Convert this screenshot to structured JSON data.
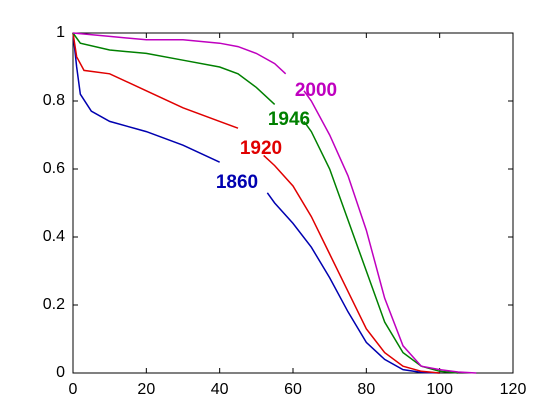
{
  "chart_data": {
    "type": "line",
    "xlim": [
      0,
      120
    ],
    "xticks": [
      0,
      20,
      40,
      60,
      80,
      100,
      120
    ],
    "ylim": [
      0,
      1
    ],
    "yticks": [
      0,
      0.2,
      0.4,
      0.6,
      0.8,
      1
    ],
    "grid": false,
    "series": [
      {
        "name": "1860",
        "color": "#0000b0",
        "x": [
          0,
          1,
          2,
          5,
          10,
          20,
          30,
          40,
          47,
          53,
          55,
          60,
          65,
          70,
          75,
          80,
          85,
          90,
          95,
          100
        ],
        "values": [
          1,
          0.9,
          0.82,
          0.77,
          0.74,
          0.71,
          0.67,
          0.62,
          null,
          0.53,
          0.5,
          0.44,
          0.37,
          0.28,
          0.18,
          0.09,
          0.04,
          0.01,
          0.002,
          0
        ]
      },
      {
        "name": "1920",
        "color": "#e00000",
        "x": [
          0,
          1,
          3,
          10,
          20,
          30,
          40,
          45,
          48,
          52,
          55,
          60,
          65,
          70,
          75,
          80,
          85,
          90,
          95,
          100
        ],
        "values": [
          1,
          0.93,
          0.89,
          0.88,
          0.83,
          0.78,
          0.74,
          0.72,
          null,
          0.64,
          0.61,
          0.55,
          0.46,
          0.35,
          0.24,
          0.13,
          0.06,
          0.02,
          0.005,
          0
        ]
      },
      {
        "name": "1946",
        "color": "#008000",
        "x": [
          0,
          2,
          10,
          20,
          30,
          40,
          45,
          50,
          55,
          59,
          63,
          65,
          70,
          75,
          80,
          85,
          90,
          95,
          100,
          105
        ],
        "values": [
          1,
          0.97,
          0.95,
          0.94,
          0.92,
          0.9,
          0.88,
          0.84,
          0.79,
          null,
          0.74,
          0.71,
          0.6,
          0.45,
          0.3,
          0.15,
          0.06,
          0.02,
          0.005,
          0
        ]
      },
      {
        "name": "2000",
        "color": "#bf00bf",
        "x": [
          0,
          10,
          20,
          30,
          40,
          45,
          50,
          55,
          58,
          60,
          63,
          65,
          70,
          75,
          80,
          85,
          90,
          95,
          100,
          105,
          110
        ],
        "values": [
          1,
          0.99,
          0.98,
          0.98,
          0.97,
          0.96,
          0.94,
          0.91,
          0.88,
          null,
          0.83,
          0.8,
          0.7,
          0.58,
          0.42,
          0.22,
          0.08,
          0.02,
          0.01,
          0.003,
          0
        ]
      }
    ]
  }
}
